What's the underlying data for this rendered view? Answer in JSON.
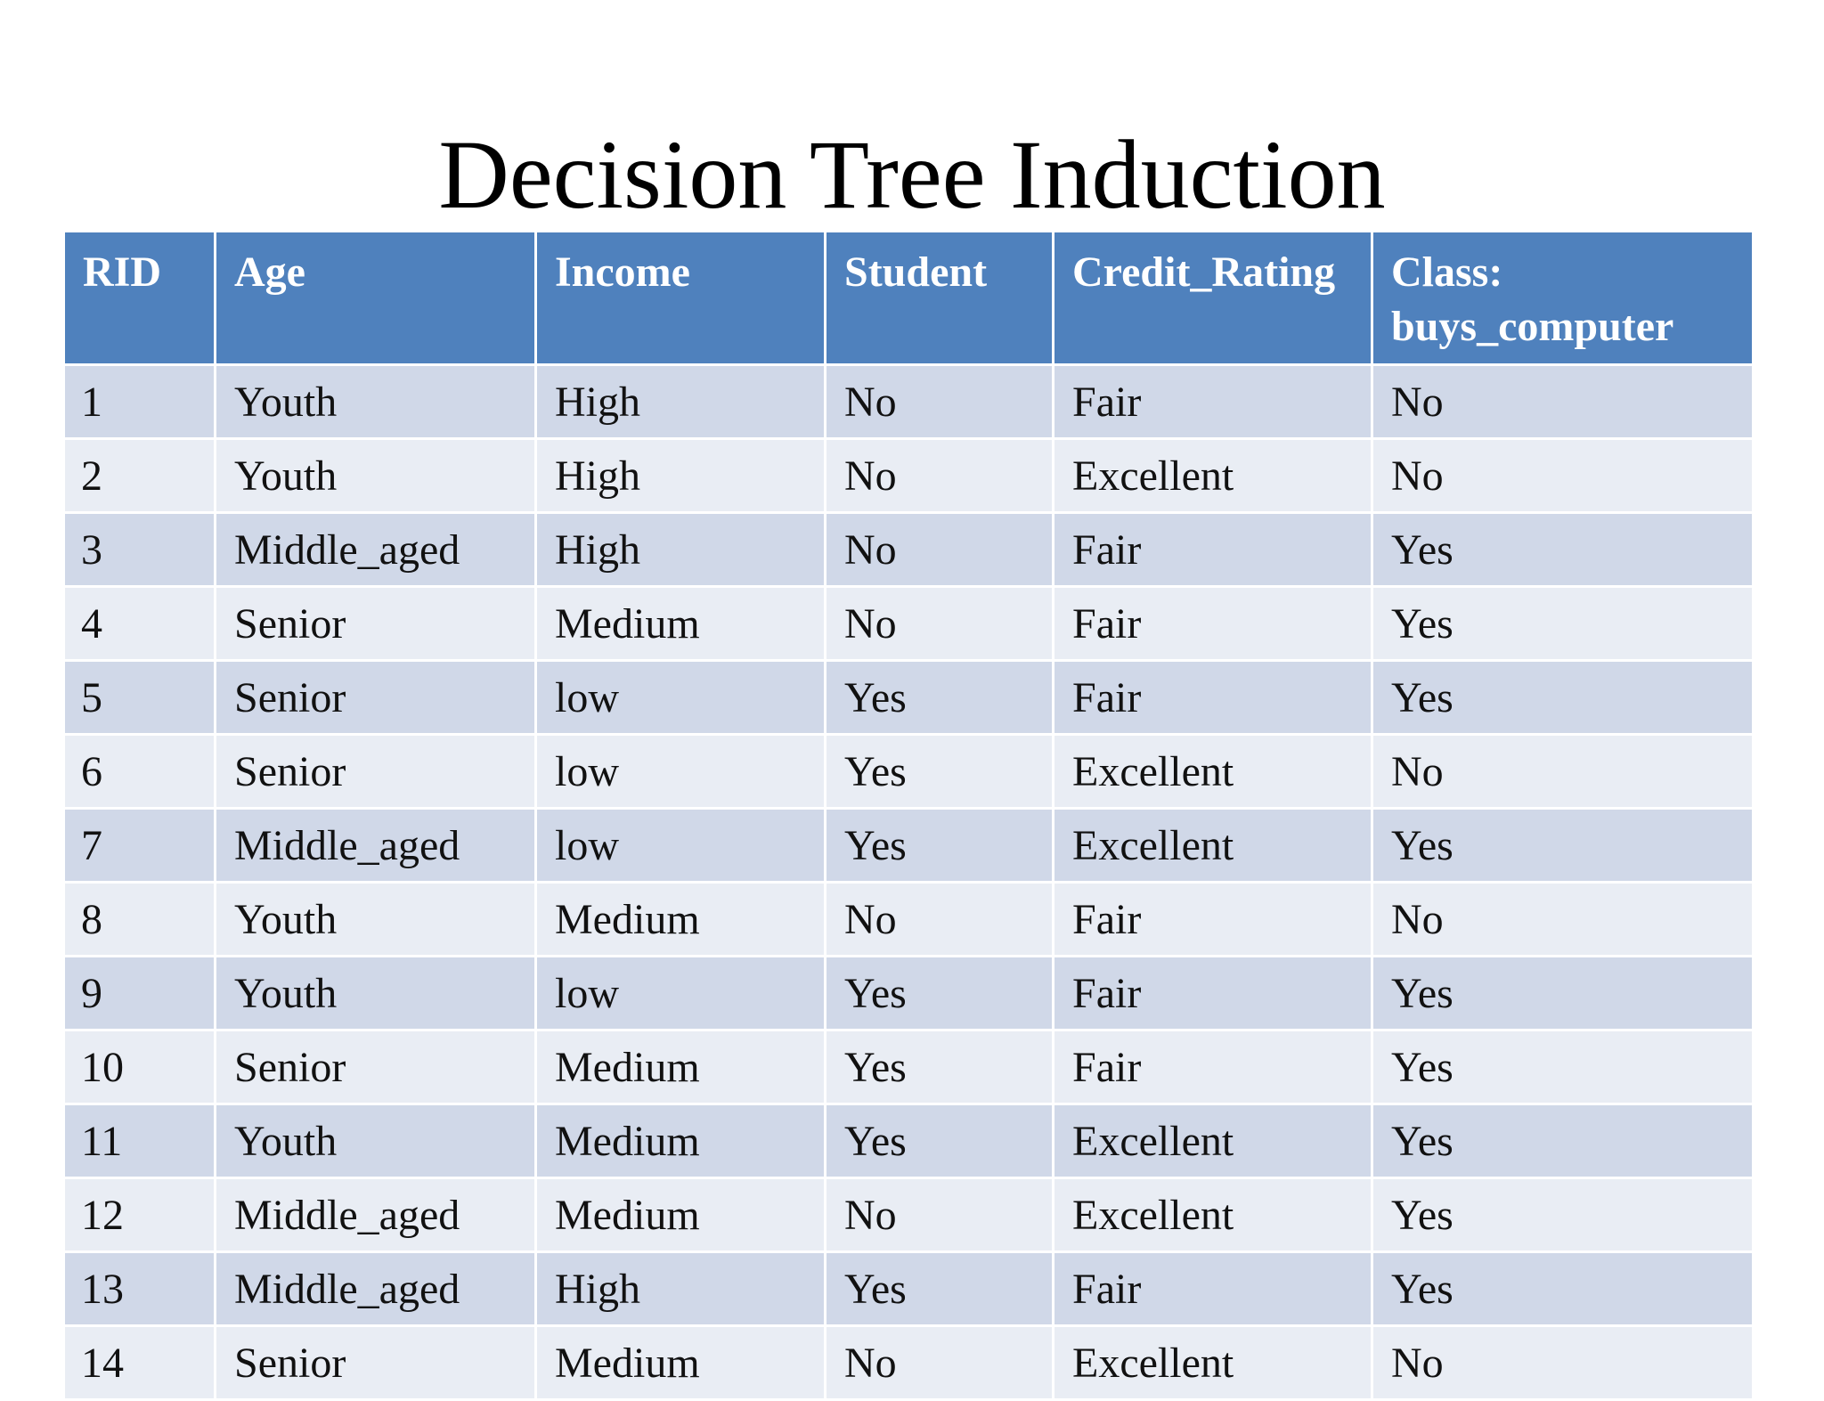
{
  "slide": {
    "title": "Decision Tree Induction"
  },
  "colors": {
    "header_bg": "#4f81bd",
    "row_odd_bg": "#d0d8e8",
    "row_even_bg": "#e9edf4"
  },
  "table": {
    "headers": [
      "RID",
      "Age",
      "Income",
      "Student",
      "Credit_Rating",
      "Class: buys_computer"
    ],
    "rows": [
      [
        "1",
        "Youth",
        "High",
        "No",
        "Fair",
        "No"
      ],
      [
        "2",
        "Youth",
        "High",
        "No",
        "Excellent",
        "No"
      ],
      [
        "3",
        "Middle_aged",
        "High",
        "No",
        "Fair",
        "Yes"
      ],
      [
        "4",
        "Senior",
        "Medium",
        "No",
        "Fair",
        "Yes"
      ],
      [
        "5",
        "Senior",
        "low",
        "Yes",
        "Fair",
        "Yes"
      ],
      [
        "6",
        "Senior",
        "low",
        "Yes",
        "Excellent",
        "No"
      ],
      [
        "7",
        "Middle_aged",
        "low",
        "Yes",
        "Excellent",
        "Yes"
      ],
      [
        "8",
        "Youth",
        "Medium",
        "No",
        "Fair",
        "No"
      ],
      [
        "9",
        "Youth",
        "low",
        "Yes",
        "Fair",
        "Yes"
      ],
      [
        "10",
        "Senior",
        "Medium",
        "Yes",
        "Fair",
        "Yes"
      ],
      [
        "11",
        "Youth",
        "Medium",
        "Yes",
        "Excellent",
        "Yes"
      ],
      [
        "12",
        "Middle_aged",
        "Medium",
        "No",
        "Excellent",
        "Yes"
      ],
      [
        "13",
        "Middle_aged",
        "High",
        "Yes",
        "Fair",
        "Yes"
      ],
      [
        "14",
        "Senior",
        "Medium",
        "No",
        "Excellent",
        "No"
      ]
    ]
  }
}
